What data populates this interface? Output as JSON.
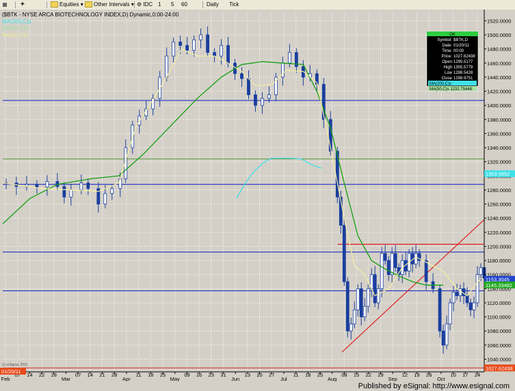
{
  "toolbar": {
    "items": [
      {
        "name": "chart-settings-button",
        "label": "",
        "icon": "dot-square-icon"
      },
      {
        "name": "add-button",
        "label": "",
        "icon": "plus-icon"
      },
      {
        "name": "equities-menu",
        "label": "Equities",
        "icon": "folder-icon"
      },
      {
        "name": "other-intervals-menu",
        "label": "Other Intervals",
        "icon": "folder-icon"
      },
      {
        "name": "interval-idc",
        "label": "IDC",
        "icon": "gear-icon"
      },
      {
        "name": "interval-1",
        "label": "1"
      },
      {
        "name": "interval-5",
        "label": "5"
      },
      {
        "name": "interval-60",
        "label": "60"
      },
      {
        "name": "interval-daily",
        "label": "Daily"
      },
      {
        "name": "interval-tick",
        "label": "Tick"
      }
    ]
  },
  "chart_header": "($BTK - NYSE ARCA BIOTECHNOLOGY INDEX,D) Dynamic,0:00-24:00",
  "legend": [
    {
      "label": "MA(200,C)s",
      "color": "#40e0e8"
    },
    {
      "label": "MA(50,C)s",
      "color": "#a8e0a0"
    },
    {
      "label": "MA(10,C)s",
      "color": "#f0e890"
    }
  ],
  "data_window": {
    "header": "OK",
    "rows": [
      {
        "label": "Symbol:",
        "value": "$BTK,D"
      },
      {
        "label": "Date:",
        "value": "01/20/11"
      },
      {
        "label": "Time:",
        "value": "00:00"
      },
      {
        "label": "Price:",
        "value": "1027.62438"
      },
      {
        "label": "Open",
        "value": "1295.5177"
      },
      {
        "label": "High",
        "value": "1305.5779"
      },
      {
        "label": "Low",
        "value": "1288.5428"
      },
      {
        "label": "Close",
        "value": "1298.9751"
      }
    ],
    "ma_rows": [
      {
        "label": "MA(200,C)s",
        "value": "",
        "color": "#40e0e8"
      },
      {
        "label": "MA(50,C)s",
        "value": "1232.75448",
        "color": "#a8e0a0"
      }
    ]
  },
  "footer": "Published by eSignal: http://www.esignal.com",
  "watermark": "(c) eSignal, 2011",
  "colors": {
    "background": "#d4d0c8",
    "candles": "#1a3e9e",
    "ma200": "#40e0e8",
    "ma50": "#14a014",
    "ma10": "#f5eea0",
    "blue_line": "#2030c0",
    "red_line": "#e02020",
    "green_line": "#5a9a3a"
  },
  "chart_data": {
    "type": "candlestick",
    "x_tick_labels": [
      "Feb",
      "07",
      "14",
      "22",
      "28",
      "Mar",
      "07",
      "14",
      "21",
      "28",
      "Apr",
      "11",
      "18",
      "25",
      "May",
      "09",
      "16",
      "23",
      "31",
      "Jun",
      "13",
      "20",
      "27",
      "Jul",
      "11",
      "18",
      "25",
      "Aug",
      "08",
      "15",
      "22",
      "29",
      "Sep",
      "12",
      "19",
      "26",
      "Oct",
      "10",
      "17",
      "24"
    ],
    "month_labels": [
      "Feb",
      "Mar",
      "Apr",
      "May",
      "Jun",
      "Jul",
      "Aug",
      "Sep",
      "Oct"
    ],
    "y_tick_labels": [
      1520,
      1500,
      1480,
      1460,
      1440,
      1420,
      1400,
      1380,
      1360,
      1340,
      1320,
      1300,
      1280,
      1260,
      1240,
      1220,
      1200,
      1180,
      1160,
      1140,
      1120,
      1100,
      1080,
      1060,
      1040
    ],
    "ylim": [
      1024,
      1532
    ],
    "price_labels": [
      {
        "text": "1303.0652",
        "value": 1303.0652,
        "bg": "#40e0e8",
        "fg": "#ffffff"
      },
      {
        "text": "1153.3045",
        "value": 1153.3045,
        "bg": "#2244cc",
        "fg": "#ffffff"
      },
      {
        "text": "1145.33482",
        "value": 1145.33482,
        "bg": "#22aa22",
        "fg": "#ffffff"
      },
      {
        "text": "1027.62438",
        "value": 1027.62438,
        "bg": "#e84a1a",
        "fg": "#ffffff"
      }
    ],
    "date_marker": "01/20/11",
    "horizontal_lines": [
      {
        "value": 1407,
        "color": "blue"
      },
      {
        "value": 1324,
        "color": "green"
      },
      {
        "value": 1288,
        "color": "blue"
      },
      {
        "value": 1192,
        "color": "blue"
      },
      {
        "value": 1137,
        "color": "blue"
      },
      {
        "value": 1027.62,
        "color": "red"
      }
    ],
    "trend_lines": [
      {
        "from": [
          1060,
          1052
        ],
        "to": [
          1196,
          1238
        ],
        "color": "red",
        "x_unit": "bar-index-scaled"
      },
      {
        "level": 1203,
        "color": "red"
      }
    ],
    "ma200_points": [
      [
        1196,
        1268
      ],
      [
        1225,
        1291
      ],
      [
        1250,
        1307
      ],
      [
        1275,
        1318
      ],
      [
        1300,
        1325
      ],
      [
        1330,
        1325
      ],
      [
        1360,
        1325
      ],
      [
        1390,
        1324
      ],
      [
        1420,
        1316
      ],
      [
        1450,
        1311
      ]
    ],
    "ma50_points": [
      [
        0,
        1232
      ],
      [
        40,
        1268
      ],
      [
        80,
        1288
      ],
      [
        130,
        1296
      ],
      [
        170,
        1300
      ],
      [
        205,
        1330
      ],
      [
        245,
        1370
      ],
      [
        285,
        1410
      ],
      [
        320,
        1440
      ],
      [
        350,
        1458
      ],
      [
        380,
        1462
      ],
      [
        410,
        1460
      ],
      [
        440,
        1458
      ],
      [
        460,
        1420
      ],
      [
        480,
        1368
      ],
      [
        500,
        1290
      ],
      [
        520,
        1215
      ],
      [
        540,
        1180
      ],
      [
        560,
        1168
      ],
      [
        580,
        1158
      ],
      [
        600,
        1150
      ],
      [
        620,
        1145
      ],
      [
        645,
        1145
      ]
    ],
    "ma10_points": [
      [
        0,
        1290
      ],
      [
        60,
        1282
      ],
      [
        100,
        1280
      ],
      [
        140,
        1278
      ],
      [
        170,
        1290
      ],
      [
        195,
        1370
      ],
      [
        215,
        1400
      ],
      [
        240,
        1440
      ],
      [
        262,
        1480
      ],
      [
        285,
        1470
      ],
      [
        310,
        1470
      ],
      [
        330,
        1460
      ],
      [
        350,
        1448
      ],
      [
        370,
        1428
      ],
      [
        395,
        1430
      ],
      [
        415,
        1450
      ],
      [
        440,
        1448
      ],
      [
        460,
        1432
      ],
      [
        480,
        1340
      ],
      [
        500,
        1240
      ],
      [
        515,
        1172
      ],
      [
        530,
        1160
      ],
      [
        545,
        1130
      ],
      [
        565,
        1140
      ],
      [
        585,
        1170
      ],
      [
        605,
        1185
      ],
      [
        625,
        1175
      ],
      [
        645,
        1165
      ],
      [
        665,
        1140
      ],
      [
        680,
        1130
      ],
      [
        700,
        1155
      ]
    ],
    "close_path": [
      [
        5,
        1290
      ],
      [
        20,
        1285
      ],
      [
        35,
        1288
      ],
      [
        50,
        1284
      ],
      [
        65,
        1292
      ],
      [
        80,
        1285
      ],
      [
        90,
        1270
      ],
      [
        100,
        1280
      ],
      [
        115,
        1290
      ],
      [
        125,
        1282
      ],
      [
        140,
        1260
      ],
      [
        150,
        1275
      ],
      [
        160,
        1282
      ],
      [
        172,
        1296
      ],
      [
        180,
        1340
      ],
      [
        190,
        1372
      ],
      [
        200,
        1385
      ],
      [
        210,
        1395
      ],
      [
        220,
        1410
      ],
      [
        230,
        1440
      ],
      [
        240,
        1470
      ],
      [
        250,
        1490
      ],
      [
        260,
        1485
      ],
      [
        270,
        1478
      ],
      [
        280,
        1493
      ],
      [
        290,
        1500
      ],
      [
        300,
        1475
      ],
      [
        310,
        1470
      ],
      [
        320,
        1485
      ],
      [
        330,
        1460
      ],
      [
        340,
        1445
      ],
      [
        350,
        1438
      ],
      [
        360,
        1415
      ],
      [
        370,
        1400
      ],
      [
        380,
        1410
      ],
      [
        390,
        1415
      ],
      [
        400,
        1440
      ],
      [
        410,
        1460
      ],
      [
        420,
        1475
      ],
      [
        430,
        1455
      ],
      [
        440,
        1440
      ],
      [
        450,
        1445
      ],
      [
        460,
        1430
      ],
      [
        470,
        1380
      ],
      [
        480,
        1335
      ],
      [
        490,
        1270
      ],
      [
        495,
        1230
      ],
      [
        500,
        1150
      ],
      [
        505,
        1080
      ],
      [
        510,
        1090
      ],
      [
        515,
        1110
      ],
      [
        520,
        1140
      ],
      [
        525,
        1100
      ],
      [
        530,
        1115
      ],
      [
        535,
        1140
      ],
      [
        540,
        1160
      ],
      [
        545,
        1120
      ],
      [
        550,
        1140
      ],
      [
        555,
        1190
      ],
      [
        560,
        1180
      ],
      [
        565,
        1160
      ],
      [
        570,
        1190
      ],
      [
        575,
        1170
      ],
      [
        580,
        1160
      ],
      [
        585,
        1180
      ],
      [
        590,
        1165
      ],
      [
        595,
        1190
      ],
      [
        600,
        1175
      ],
      [
        605,
        1190
      ],
      [
        610,
        1180
      ],
      [
        620,
        1150
      ],
      [
        630,
        1140
      ],
      [
        640,
        1080
      ],
      [
        645,
        1060
      ],
      [
        650,
        1090
      ],
      [
        655,
        1120
      ],
      [
        660,
        1135
      ],
      [
        665,
        1130
      ],
      [
        670,
        1140
      ],
      [
        675,
        1130
      ],
      [
        680,
        1120
      ],
      [
        685,
        1110
      ],
      [
        690,
        1120
      ],
      [
        695,
        1160
      ],
      [
        700,
        1170
      ],
      [
        705,
        1155
      ]
    ]
  }
}
